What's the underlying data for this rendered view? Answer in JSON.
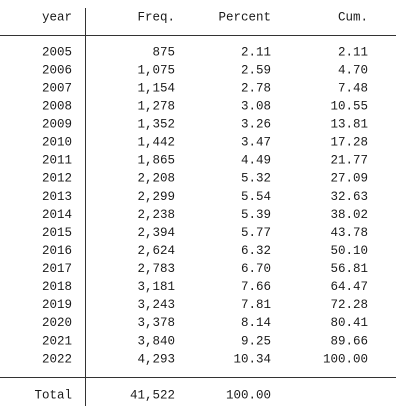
{
  "table": {
    "header": [
      "year",
      "Freq.",
      "Percent",
      "Cum."
    ],
    "rows": [
      [
        "2005",
        "875",
        "2.11",
        "2.11"
      ],
      [
        "2006",
        "1,075",
        "2.59",
        "4.70"
      ],
      [
        "2007",
        "1,154",
        "2.78",
        "7.48"
      ],
      [
        "2008",
        "1,278",
        "3.08",
        "10.55"
      ],
      [
        "2009",
        "1,352",
        "3.26",
        "13.81"
      ],
      [
        "2010",
        "1,442",
        "3.47",
        "17.28"
      ],
      [
        "2011",
        "1,865",
        "4.49",
        "21.77"
      ],
      [
        "2012",
        "2,208",
        "5.32",
        "27.09"
      ],
      [
        "2013",
        "2,299",
        "5.54",
        "32.63"
      ],
      [
        "2014",
        "2,238",
        "5.39",
        "38.02"
      ],
      [
        "2015",
        "2,394",
        "5.77",
        "43.78"
      ],
      [
        "2016",
        "2,624",
        "6.32",
        "50.10"
      ],
      [
        "2017",
        "2,783",
        "6.70",
        "56.81"
      ],
      [
        "2018",
        "3,181",
        "7.66",
        "64.47"
      ],
      [
        "2019",
        "3,243",
        "7.81",
        "72.28"
      ],
      [
        "2020",
        "3,378",
        "8.14",
        "80.41"
      ],
      [
        "2021",
        "3,840",
        "9.25",
        "89.66"
      ],
      [
        "2022",
        "4,293",
        "10.34",
        "100.00"
      ]
    ],
    "total": [
      "Total",
      "41,522",
      "100.00"
    ]
  }
}
